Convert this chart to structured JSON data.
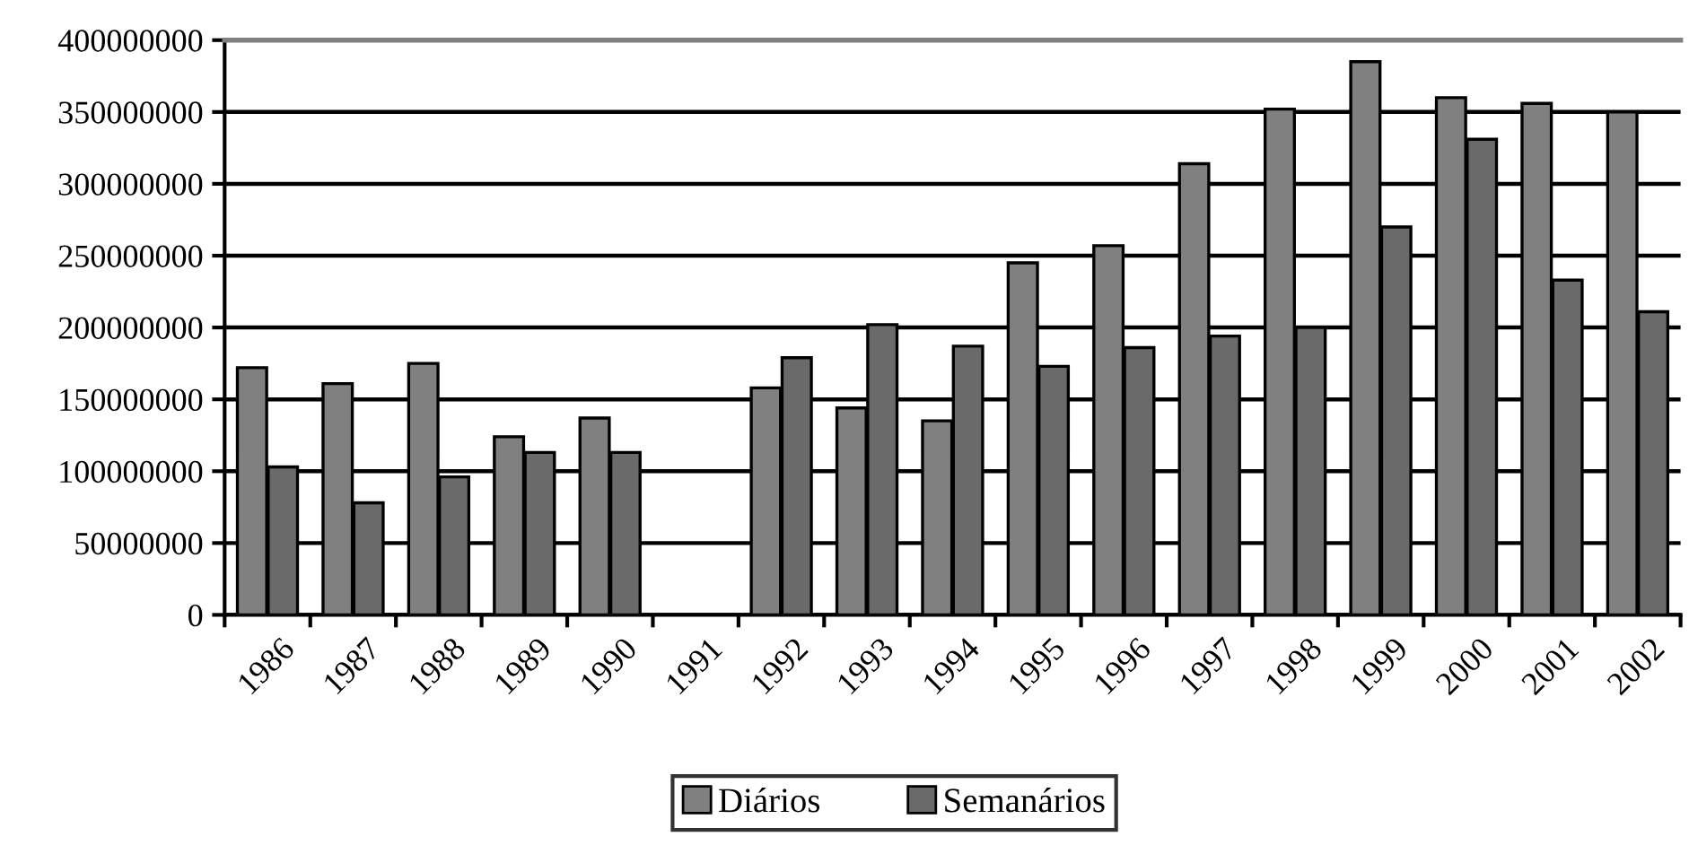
{
  "chart_data": {
    "type": "bar",
    "categories": [
      "1986",
      "1987",
      "1988",
      "1989",
      "1990",
      "1991",
      "1992",
      "1993",
      "1994",
      "1995",
      "1996",
      "1997",
      "1998",
      "1999",
      "2000",
      "2001",
      "2002"
    ],
    "series": [
      {
        "name": "Diários",
        "color": "#808080",
        "values": [
          172000000,
          161000000,
          175000000,
          124000000,
          137000000,
          null,
          158000000,
          144000000,
          135000000,
          245000000,
          257000000,
          314000000,
          352000000,
          385000000,
          360000000,
          356000000,
          350000000
        ]
      },
      {
        "name": "Semanários",
        "color": "#6a6a6a",
        "values": [
          103000000,
          78000000,
          96000000,
          113000000,
          113000000,
          null,
          179000000,
          202000000,
          187000000,
          173000000,
          186000000,
          194000000,
          200000000,
          270000000,
          331000000,
          233000000,
          211000000
        ]
      }
    ],
    "ylim": [
      0,
      400000000
    ],
    "yticks": [
      0,
      50000000,
      100000000,
      150000000,
      200000000,
      250000000,
      300000000,
      350000000,
      400000000
    ],
    "grid": "y",
    "legend": "bottom"
  }
}
